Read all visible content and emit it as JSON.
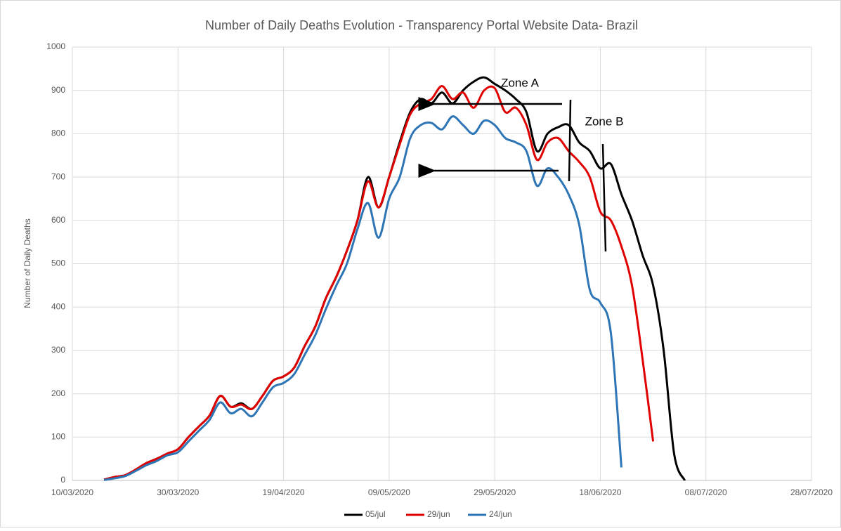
{
  "chart_data": {
    "type": "line",
    "title": "Number of Daily Deaths Evolution - Transparency Portal Website Data- Brazil",
    "y_label": "Number of Daily Deaths",
    "annotations": [
      "Zone A",
      "Zone B"
    ],
    "x": [
      "2020-03-16",
      "2020-03-18",
      "2020-03-20",
      "2020-03-22",
      "2020-03-24",
      "2020-03-26",
      "2020-03-28",
      "2020-03-30",
      "2020-04-01",
      "2020-04-03",
      "2020-04-05",
      "2020-04-07",
      "2020-04-09",
      "2020-04-11",
      "2020-04-13",
      "2020-04-15",
      "2020-04-17",
      "2020-04-19",
      "2020-04-21",
      "2020-04-23",
      "2020-04-25",
      "2020-04-27",
      "2020-04-29",
      "2020-05-01",
      "2020-05-03",
      "2020-05-05",
      "2020-05-07",
      "2020-05-09",
      "2020-05-11",
      "2020-05-13",
      "2020-05-15",
      "2020-05-17",
      "2020-05-19",
      "2020-05-21",
      "2020-05-23",
      "2020-05-25",
      "2020-05-27",
      "2020-05-29",
      "2020-05-31",
      "2020-06-02",
      "2020-06-04",
      "2020-06-06",
      "2020-06-08",
      "2020-06-10",
      "2020-06-12",
      "2020-06-14",
      "2020-06-16",
      "2020-06-18",
      "2020-06-20",
      "2020-06-22",
      "2020-06-24",
      "2020-06-26",
      "2020-06-28",
      "2020-06-30",
      "2020-07-02",
      "2020-07-04",
      "2020-07-06"
    ],
    "series": [
      {
        "name": "05/jul",
        "color": "#000000",
        "values": [
          2,
          8,
          12,
          25,
          40,
          50,
          62,
          72,
          100,
          125,
          150,
          195,
          170,
          178,
          165,
          195,
          230,
          240,
          260,
          310,
          355,
          420,
          470,
          530,
          600,
          700,
          630,
          700,
          780,
          850,
          880,
          870,
          895,
          870,
          900,
          920,
          930,
          915,
          900,
          880,
          850,
          760,
          800,
          815,
          820,
          780,
          760,
          720,
          730,
          660,
          600,
          520,
          450,
          300,
          60,
          0,
          null
        ]
      },
      {
        "name": "29/jun",
        "color": "#e00000",
        "values": [
          2,
          8,
          12,
          25,
          40,
          50,
          62,
          72,
          100,
          125,
          150,
          195,
          170,
          175,
          165,
          195,
          230,
          240,
          260,
          310,
          355,
          420,
          470,
          530,
          600,
          690,
          630,
          700,
          775,
          845,
          870,
          880,
          910,
          880,
          895,
          860,
          900,
          905,
          850,
          860,
          820,
          740,
          780,
          790,
          760,
          735,
          700,
          620,
          600,
          540,
          450,
          280,
          90,
          null,
          null,
          null,
          null
        ]
      },
      {
        "name": "24/jun",
        "color": "#2e75b6",
        "values": [
          1,
          5,
          10,
          22,
          35,
          45,
          58,
          65,
          90,
          115,
          140,
          180,
          155,
          165,
          148,
          180,
          215,
          225,
          245,
          290,
          335,
          395,
          450,
          500,
          580,
          640,
          560,
          650,
          700,
          790,
          820,
          825,
          810,
          840,
          820,
          800,
          830,
          820,
          790,
          780,
          760,
          680,
          720,
          700,
          660,
          590,
          440,
          410,
          340,
          30,
          null,
          null,
          null,
          null,
          null,
          null,
          null
        ]
      }
    ],
    "xlim": [
      "2020-03-10",
      "2020-07-28"
    ],
    "xticks": [
      {
        "value": "2020-03-10",
        "label": "10/03/2020"
      },
      {
        "value": "2020-03-30",
        "label": "30/03/2020"
      },
      {
        "value": "2020-04-19",
        "label": "19/04/2020"
      },
      {
        "value": "2020-05-09",
        "label": "09/05/2020"
      },
      {
        "value": "2020-05-29",
        "label": "29/05/2020"
      },
      {
        "value": "2020-06-18",
        "label": "18/06/2020"
      },
      {
        "value": "2020-07-08",
        "label": "08/07/2020"
      },
      {
        "value": "2020-07-28",
        "label": "28/07/2020"
      }
    ],
    "ylim": [
      0,
      1000
    ],
    "yticks": [
      0,
      100,
      200,
      300,
      400,
      500,
      600,
      700,
      800,
      900,
      1000
    ],
    "grid": true,
    "legend": "bottom"
  }
}
